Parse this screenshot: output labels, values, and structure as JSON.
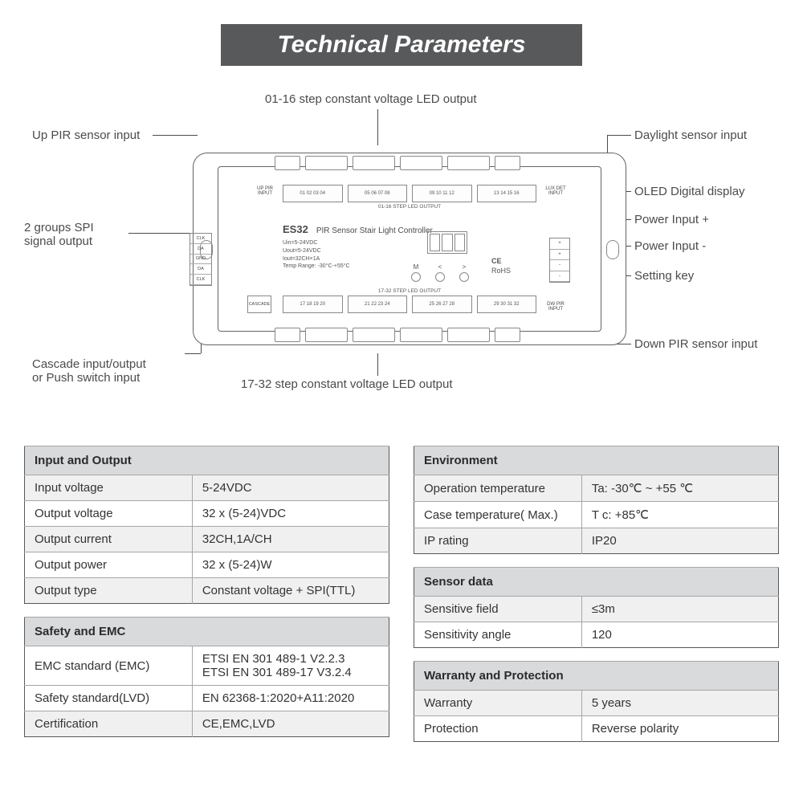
{
  "banner": "Technical Parameters",
  "diagram": {
    "model": "ES32",
    "model_desc": "PIR Sensor Stair Light Controller",
    "spec_lines": "Uin=5-24VDC\nUout=5-24VDC\nIout=32CH×1A\nTemp Range: -30°C-+55°C",
    "top_strip_label": "01-16 STEP LED OUTPUT",
    "bot_strip_label": "17-32 STEP LED OUTPUT",
    "up_pir": "UP PIR\nINPUT",
    "dw_pir": "DW PIR\nINPUT",
    "lux": "LUX DET\nINPUT",
    "cascade": "CASCADE",
    "spi_pins": [
      "CLK",
      "DA",
      "GND",
      "DA",
      "CLK"
    ],
    "pwr_pins": [
      "+",
      "+",
      "-",
      "-"
    ],
    "btn_labels": [
      "M",
      "<",
      ">"
    ],
    "ce": "CE",
    "rohs": "RoHS",
    "callouts": {
      "top_center": "01-16 step constant voltage LED output",
      "up_pir": "Up PIR sensor input",
      "daylight": "Daylight sensor input",
      "oled": "OLED Digital display",
      "pwrp": "Power Input +",
      "pwrn": "Power Input -",
      "setting": "Setting key",
      "spi": "2 groups SPI\nsignal output",
      "cascade": "Cascade input/output\nor Push switch input",
      "dw_pir": "Down PIR sensor input",
      "bot_center": "17-32 step constant voltage LED output"
    }
  },
  "left_tables": [
    {
      "title": "Input and Output",
      "rows": [
        {
          "k": "Input voltage",
          "v": "5-24VDC",
          "shade": true
        },
        {
          "k": "Output voltage",
          "v": "32 x (5-24)VDC",
          "shade": false
        },
        {
          "k": "Output current",
          "v": "32CH,1A/CH",
          "shade": true
        },
        {
          "k": "Output power",
          "v": "32 x (5-24)W",
          "shade": false
        },
        {
          "k": "Output type",
          "v": "Constant voltage + SPI(TTL)",
          "shade": true
        }
      ]
    },
    {
      "title": "Safety and EMC",
      "rows": [
        {
          "k": "EMC standard (EMC)",
          "v": "ETSI EN 301 489-1 V2.2.3\nETSI EN 301 489-17 V3.2.4",
          "shade": false
        },
        {
          "k": "Safety standard(LVD)",
          "v": "EN 62368-1:2020+A11:2020",
          "shade": false
        },
        {
          "k": "Certification",
          "v": "CE,EMC,LVD",
          "shade": true
        }
      ]
    }
  ],
  "right_tables": [
    {
      "title": "Environment",
      "rows": [
        {
          "k": "Operation temperature",
          "v": "Ta: -30℃ ~ +55 ℃",
          "shade": true
        },
        {
          "k": "Case temperature( Max.)",
          "v": "T c:  +85℃",
          "shade": false
        },
        {
          "k": "IP rating",
          "v": "IP20",
          "shade": true
        }
      ]
    },
    {
      "title": "Sensor data",
      "rows": [
        {
          "k": "Sensitive field",
          "v": "≤3m",
          "shade": true
        },
        {
          "k": "Sensitivity angle",
          "v": "120",
          "shade": false
        }
      ]
    },
    {
      "title": "Warranty and Protection",
      "rows": [
        {
          "k": "Warranty",
          "v": "5 years",
          "shade": true
        },
        {
          "k": "Protection",
          "v": "Reverse polarity",
          "shade": false
        }
      ]
    }
  ],
  "style": {
    "banner_bg": "#58595b",
    "banner_color": "#ffffff",
    "border_color": "#57585a",
    "head_bg": "#d9dadb",
    "shade_bg": "#f0f0f1",
    "text_color": "#333333",
    "callout_color": "#4b4b4d"
  }
}
